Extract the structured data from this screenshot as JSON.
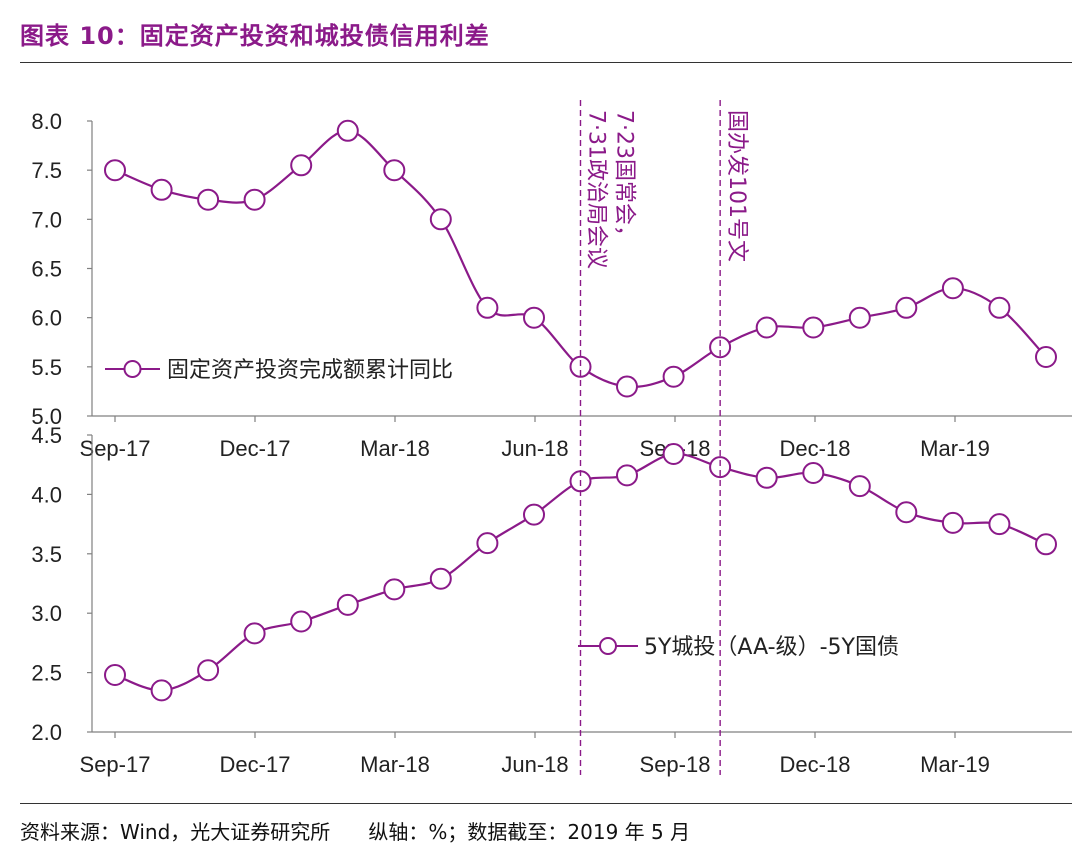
{
  "title": "图表 10：固定资产投资和城投债信用利差",
  "footer": {
    "source": "资料来源：Wind，光大证券研究所",
    "note": "纵轴：%；数据截至：2019 年 5 月"
  },
  "colors": {
    "series": "#8B1A89",
    "axis": "#808080",
    "text": "#222222",
    "rule": "#333333"
  },
  "icons": {
    "legend_marker": "circle-line-marker-icon"
  },
  "chart_data": [
    {
      "type": "line",
      "categories": [
        "2017-09",
        "2017-10",
        "2017-11",
        "2017-12",
        "2018-01",
        "2018-02",
        "2018-03",
        "2018-04",
        "2018-05",
        "2018-06",
        "2018-07",
        "2018-08",
        "2018-09",
        "2018-10",
        "2018-11",
        "2018-12",
        "2019-01",
        "2019-02",
        "2019-03",
        "2019-04",
        "2019-05"
      ],
      "tick_labels": [
        "Sep-17",
        "Dec-17",
        "Mar-18",
        "Jun-18",
        "Sep-18",
        "Dec-18",
        "Mar-19"
      ],
      "y_ticks": [
        "8.0",
        "7.5",
        "7.0",
        "6.5",
        "6.0",
        "5.5",
        "5.0"
      ],
      "ylim": [
        5.0,
        8.0
      ],
      "series": [
        {
          "name": "固定资产投资完成额累计同比",
          "values": [
            7.5,
            7.3,
            7.2,
            7.2,
            7.55,
            7.9,
            7.5,
            7.0,
            6.1,
            6.0,
            5.5,
            5.3,
            5.4,
            5.7,
            5.9,
            5.9,
            6.0,
            6.1,
            6.3,
            6.1,
            5.6
          ]
        }
      ],
      "legend": "center-left",
      "grid": false,
      "annotations": [
        {
          "category": "2018-07",
          "text_lines": [
            "7·23国常会，",
            "7·31政治局会议"
          ]
        },
        {
          "category": "2018-10",
          "text_lines": [
            "国办发101号文"
          ]
        }
      ]
    },
    {
      "type": "line",
      "categories": [
        "2017-09",
        "2017-10",
        "2017-11",
        "2017-12",
        "2018-01",
        "2018-02",
        "2018-03",
        "2018-04",
        "2018-05",
        "2018-06",
        "2018-07",
        "2018-08",
        "2018-09",
        "2018-10",
        "2018-11",
        "2018-12",
        "2019-01",
        "2019-02",
        "2019-03",
        "2019-04",
        "2019-05"
      ],
      "tick_labels": [
        "Sep-17",
        "Dec-17",
        "Mar-18",
        "Jun-18",
        "Sep-18",
        "Dec-18",
        "Mar-19"
      ],
      "y_ticks": [
        "4.5",
        "4.0",
        "3.5",
        "3.0",
        "2.5",
        "2.0"
      ],
      "ylim": [
        2.0,
        4.5
      ],
      "series": [
        {
          "name": "5Y城投（AA-级）-5Y国债",
          "values": [
            2.48,
            2.35,
            2.52,
            2.83,
            2.93,
            3.07,
            3.2,
            3.29,
            3.59,
            3.83,
            4.11,
            4.16,
            4.34,
            4.23,
            4.14,
            4.18,
            4.07,
            3.85,
            3.76,
            3.75,
            3.58
          ]
        }
      ],
      "legend": "center-right",
      "grid": false
    }
  ]
}
